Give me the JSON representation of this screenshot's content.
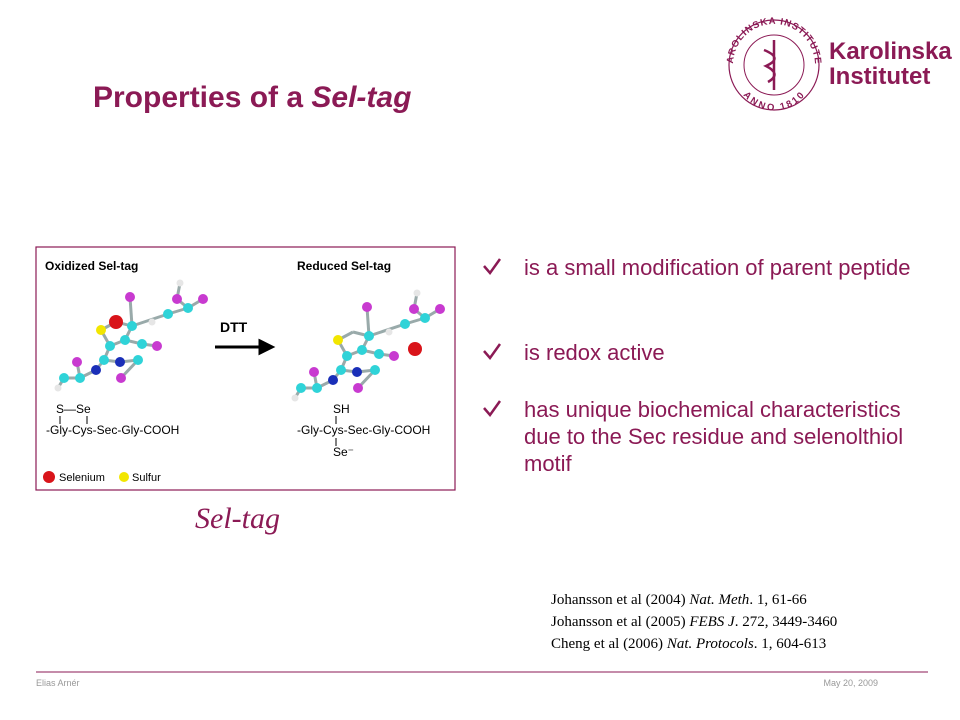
{
  "logo": {
    "ring_top": "KAROLINSKA INSTITUTET",
    "ring_bottom": "ANNO 1810",
    "name_line1": "Karolinska",
    "name_line2": "Institutet"
  },
  "title": {
    "text": "Properties of a ",
    "emphasis": "Sel-tag"
  },
  "figure": {
    "left_label": "Oxidized Sel-tag",
    "right_label": "Reduced Sel-tag",
    "arrow_label": "DTT",
    "left_bond": "S—Se",
    "left_sequence": "-Gly-Cys-Sec-Gly-COOH",
    "right_top": "SH",
    "right_sequence": "-Gly-Cys-Sec-Gly-COOH",
    "right_bottom": "Se⁻",
    "legend": [
      "Selenium",
      "Sulfur"
    ]
  },
  "caption": "Sel-tag",
  "bullets": [
    "is a small modification of parent peptide",
    "is redox active",
    "has unique biochemical characteristics due to the Sec residue and selenolthiol motif"
  ],
  "references": [
    {
      "authors": "Johansson et al (2004)",
      "journal": "Nat. Meth",
      "details": ". 1, 61-66"
    },
    {
      "authors": "Johansson et al (2005)",
      "journal": "FEBS J",
      "details": ". 272, 3449-3460"
    },
    {
      "authors": "Cheng et al (2006)",
      "journal": "Nat. Protocols",
      "details": ". 1, 604-613"
    }
  ],
  "footer": {
    "author": "Elias Arnér",
    "date": "May 20, 2009"
  }
}
